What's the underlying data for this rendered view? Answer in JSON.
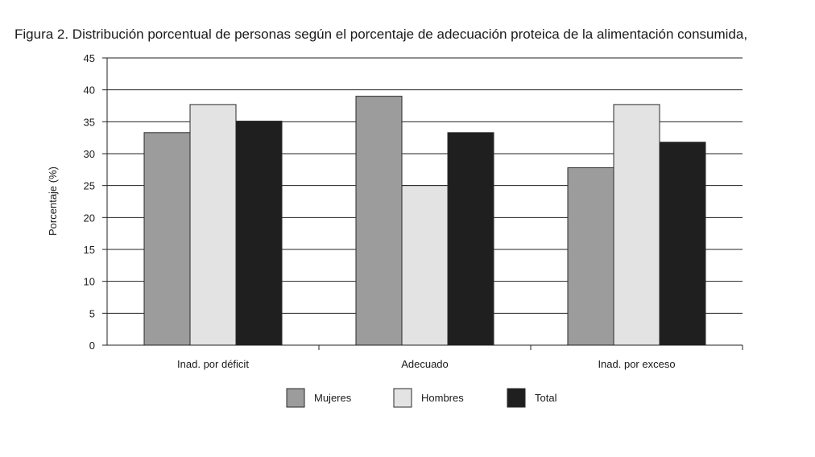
{
  "chart_data": {
    "type": "bar",
    "title": "Figura 2. Distribución porcentual de personas según el porcentaje de adecuación proteica de la alimentación consumida,",
    "ylabel": "Porcentaje (%)",
    "xlabel": "",
    "ylim": [
      0,
      45
    ],
    "yticks": [
      0,
      5,
      10,
      15,
      20,
      25,
      30,
      35,
      40,
      45
    ],
    "categories": [
      "Inad. por déficit",
      "Adecuado",
      "Inad. por exceso"
    ],
    "series": [
      {
        "name": "Mujeres",
        "color": "#9d9c9c",
        "values": [
          33.3,
          39.0,
          27.8
        ]
      },
      {
        "name": "Hombres",
        "color": "#e3e3e3",
        "values": [
          37.7,
          25.0,
          37.7
        ]
      },
      {
        "name": "Total",
        "color": "#1f1f1f",
        "values": [
          35.1,
          33.3,
          31.8
        ]
      }
    ],
    "grid": true,
    "legend": "bottom"
  }
}
